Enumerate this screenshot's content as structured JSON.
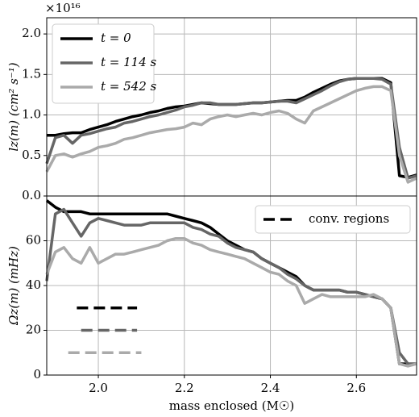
{
  "chart_data": [
    {
      "type": "line",
      "ylabel": "lz(m) (cm² s⁻¹)",
      "multiplier": "×10¹⁶",
      "ylim": [
        0,
        2.2
      ],
      "yticks": [
        {
          "value": 0,
          "label": "0.0"
        },
        {
          "value": 0.5,
          "label": "0.5"
        },
        {
          "value": 1,
          "label": "1.0"
        },
        {
          "value": 1.5,
          "label": "1.5"
        },
        {
          "value": 2,
          "label": "2.0"
        }
      ],
      "grid": true,
      "legend": "upper left",
      "x": [
        1.88,
        1.9,
        1.92,
        1.94,
        1.96,
        1.98,
        2.0,
        2.02,
        2.04,
        2.06,
        2.08,
        2.1,
        2.12,
        2.14,
        2.16,
        2.18,
        2.2,
        2.22,
        2.24,
        2.26,
        2.28,
        2.3,
        2.32,
        2.34,
        2.36,
        2.38,
        2.4,
        2.42,
        2.44,
        2.46,
        2.48,
        2.5,
        2.52,
        2.54,
        2.56,
        2.58,
        2.6,
        2.62,
        2.64,
        2.66,
        2.68,
        2.7,
        2.72,
        2.74
      ],
      "series": [
        {
          "name": "t = 0",
          "color": "#000000",
          "values": [
            0.75,
            0.75,
            0.77,
            0.78,
            0.78,
            0.82,
            0.85,
            0.88,
            0.92,
            0.95,
            0.98,
            1.0,
            1.03,
            1.05,
            1.08,
            1.1,
            1.11,
            1.13,
            1.15,
            1.14,
            1.13,
            1.13,
            1.13,
            1.14,
            1.15,
            1.15,
            1.16,
            1.17,
            1.18,
            1.18,
            1.22,
            1.28,
            1.33,
            1.38,
            1.42,
            1.44,
            1.45,
            1.45,
            1.45,
            1.45,
            1.4,
            0.25,
            0.23,
            0.26
          ]
        },
        {
          "name": "t = 114 s",
          "color": "#666666",
          "values": [
            0.4,
            0.72,
            0.75,
            0.65,
            0.75,
            0.77,
            0.8,
            0.83,
            0.85,
            0.9,
            0.92,
            0.95,
            0.98,
            1.0,
            1.03,
            1.06,
            1.1,
            1.12,
            1.15,
            1.15,
            1.13,
            1.13,
            1.13,
            1.14,
            1.15,
            1.15,
            1.16,
            1.17,
            1.17,
            1.15,
            1.2,
            1.25,
            1.3,
            1.36,
            1.41,
            1.44,
            1.45,
            1.45,
            1.45,
            1.44,
            1.38,
            0.6,
            0.22,
            0.25
          ]
        },
        {
          "name": "t = 542 s",
          "color": "#aaaaaa",
          "values": [
            0.3,
            0.5,
            0.52,
            0.48,
            0.52,
            0.55,
            0.6,
            0.62,
            0.65,
            0.7,
            0.72,
            0.75,
            0.78,
            0.8,
            0.82,
            0.83,
            0.85,
            0.9,
            0.88,
            0.95,
            0.98,
            1.0,
            0.98,
            1.0,
            1.02,
            1.0,
            1.03,
            1.05,
            1.02,
            0.95,
            0.9,
            1.05,
            1.1,
            1.15,
            1.2,
            1.25,
            1.3,
            1.33,
            1.35,
            1.35,
            1.3,
            0.5,
            0.17,
            0.22
          ]
        }
      ]
    },
    {
      "type": "line",
      "xlabel": "mass enclosed (M☉)",
      "ylabel": "Ωz(m) (mHz)",
      "xlim": [
        1.88,
        2.74
      ],
      "xticks": [
        {
          "value": 2,
          "label": "2.0"
        },
        {
          "value": 2.2,
          "label": "2.2"
        },
        {
          "value": 2.4,
          "label": "2.4"
        },
        {
          "value": 2.6,
          "label": "2.6"
        }
      ],
      "ylim": [
        0,
        80
      ],
      "yticks": [
        0,
        20,
        40,
        60
      ],
      "grid": true,
      "legend": "upper right",
      "x": [
        1.88,
        1.9,
        1.92,
        1.94,
        1.96,
        1.98,
        2.0,
        2.02,
        2.04,
        2.06,
        2.08,
        2.1,
        2.12,
        2.14,
        2.16,
        2.18,
        2.2,
        2.22,
        2.24,
        2.26,
        2.28,
        2.3,
        2.32,
        2.34,
        2.36,
        2.38,
        2.4,
        2.42,
        2.44,
        2.46,
        2.48,
        2.5,
        2.52,
        2.54,
        2.56,
        2.58,
        2.6,
        2.62,
        2.64,
        2.66,
        2.68,
        2.7,
        2.72,
        2.74
      ],
      "series": [
        {
          "color": "#000000",
          "values": [
            78,
            75,
            73,
            73,
            73,
            72,
            72,
            72,
            72,
            72,
            72,
            72,
            72,
            72,
            72,
            71,
            70,
            69,
            68,
            66,
            63,
            60,
            58,
            56,
            55,
            52,
            50,
            48,
            46,
            44,
            40,
            38,
            38,
            38,
            38,
            37,
            37,
            36,
            35,
            34,
            30,
            5,
            5,
            5
          ]
        },
        {
          "color": "#666666",
          "values": [
            42,
            72,
            74,
            68,
            62,
            68,
            70,
            69,
            68,
            67,
            67,
            67,
            68,
            68,
            68,
            68,
            68,
            66,
            65,
            63,
            62,
            59,
            57,
            56,
            55,
            52,
            50,
            48,
            45,
            43,
            40,
            38,
            38,
            38,
            38,
            37,
            37,
            36,
            35,
            34,
            30,
            10,
            5,
            5
          ]
        },
        {
          "color": "#aaaaaa",
          "values": [
            45,
            55,
            57,
            52,
            50,
            57,
            50,
            52,
            54,
            54,
            55,
            56,
            57,
            58,
            60,
            61,
            61,
            59,
            58,
            56,
            55,
            54,
            53,
            52,
            50,
            48,
            46,
            45,
            42,
            40,
            32,
            34,
            36,
            35,
            35,
            35,
            35,
            35,
            36,
            34,
            30,
            5,
            4,
            5
          ]
        }
      ],
      "regions_label": "conv. regions",
      "regions": [
        {
          "x": [
            1.95,
            2.09
          ],
          "y": 30,
          "color": "#000000"
        },
        {
          "x": [
            1.96,
            2.09
          ],
          "y": 20,
          "color": "#666666"
        },
        {
          "x": [
            1.93,
            2.1
          ],
          "y": 10,
          "color": "#aaaaaa"
        }
      ]
    }
  ]
}
